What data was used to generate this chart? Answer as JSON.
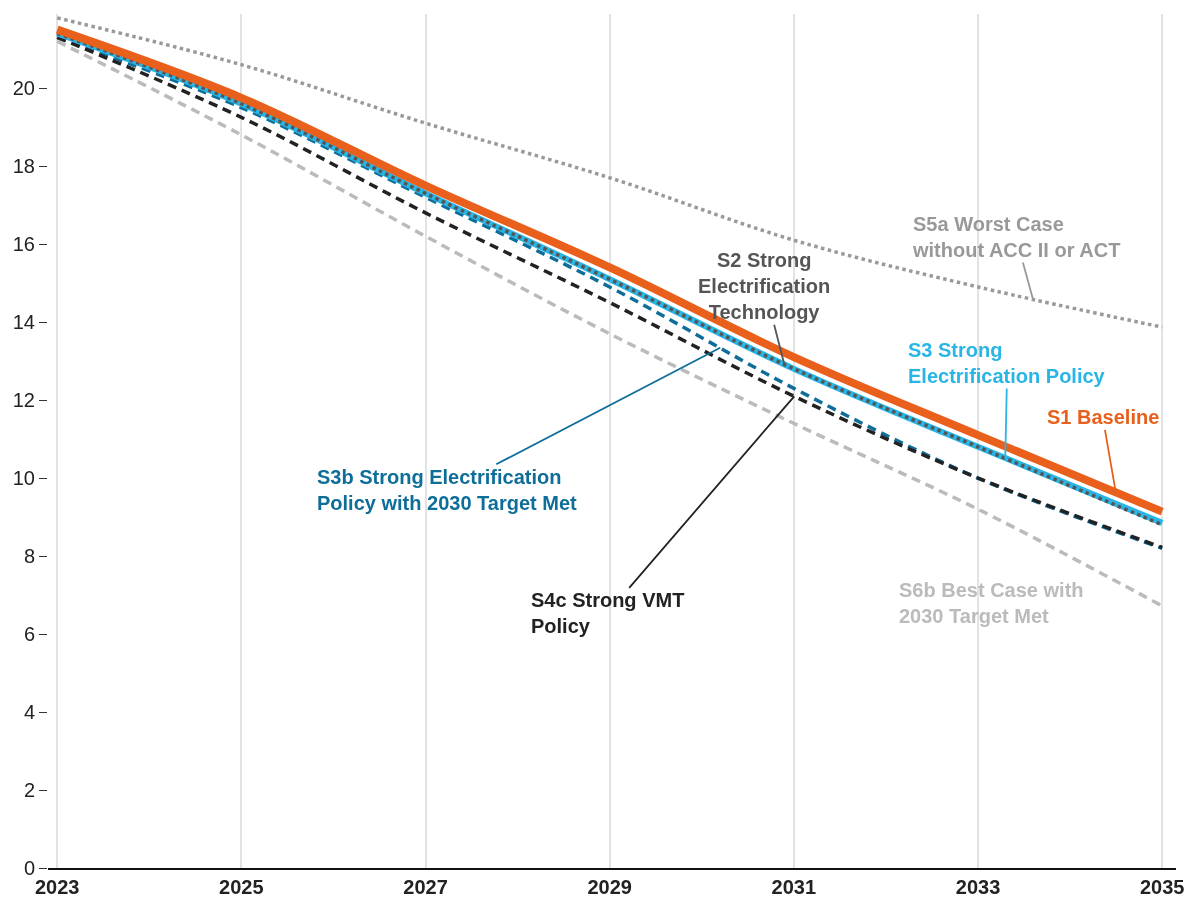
{
  "chart_data": {
    "type": "line",
    "x": [
      2023,
      2025,
      2027,
      2029,
      2031,
      2033,
      2035
    ],
    "series": [
      {
        "name": "S1 Baseline",
        "color": "#e8601c",
        "line_style": "solid",
        "values": [
          21.5,
          19.75,
          17.5,
          15.4,
          13.1,
          11.1,
          9.14
        ]
      },
      {
        "name": "S2 Strong Electrification Technology",
        "color": "#555555",
        "line_style": "dotted",
        "values": [
          21.4,
          19.6,
          17.3,
          15.1,
          12.8,
          10.8,
          8.8
        ]
      },
      {
        "name": "S3 Strong Electrification Policy",
        "color": "#29b6e6",
        "line_style": "solid",
        "values": [
          21.4,
          19.6,
          17.3,
          15.1,
          12.8,
          10.8,
          8.85
        ]
      },
      {
        "name": "S3b Strong Electrification Policy with 2030 Target Met",
        "color": "#0e6e99",
        "line_style": "dashed",
        "values": [
          21.3,
          19.5,
          17.2,
          14.9,
          12.3,
          10.0,
          8.2
        ]
      },
      {
        "name": "S4c Strong VMT Policy",
        "color": "#222222",
        "line_style": "dashed",
        "values": [
          21.3,
          19.25,
          16.8,
          14.5,
          12.1,
          10.0,
          8.22
        ]
      },
      {
        "name": "S5a Worst Case without ACC II or ACT",
        "color": "#999999",
        "line_style": "dotted",
        "values": [
          21.8,
          20.6,
          19.1,
          17.7,
          16.1,
          14.9,
          13.87
        ]
      },
      {
        "name": "S6b Best Case with 2030 Target Met",
        "color": "#bbbbbb",
        "line_style": "dashed",
        "values": [
          21.2,
          18.8,
          16.2,
          13.7,
          11.4,
          9.2,
          6.72
        ]
      }
    ],
    "xlim": [
      2022.9,
      2035.15
    ],
    "xticks": [
      2023,
      2025,
      2027,
      2029,
      2031,
      2033,
      2035
    ],
    "ylim": [
      0,
      21.9
    ],
    "yticks": [
      0,
      2,
      4,
      6,
      8,
      10,
      12,
      14,
      16,
      18,
      20
    ],
    "grid": "x",
    "legend": false
  }
}
